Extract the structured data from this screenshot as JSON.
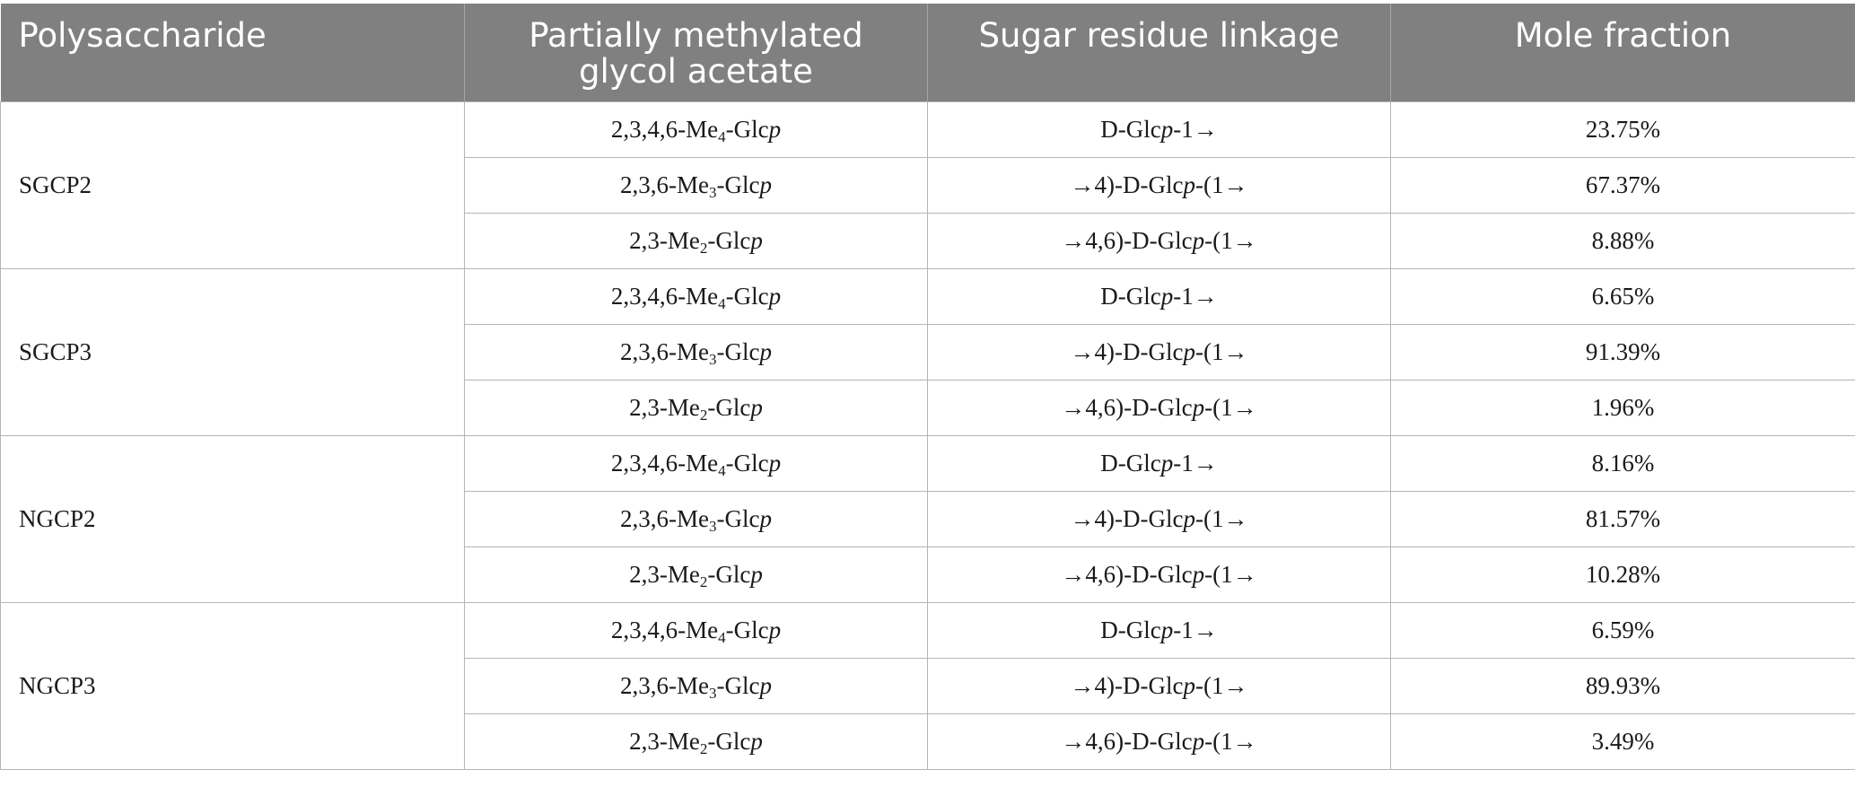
{
  "headers": {
    "polysaccharide": "Polysaccharide",
    "glycol_acetate": "Partially methylated glycol acetate",
    "linkage": "Sugar residue linkage",
    "mole_fraction": "Mole fraction"
  },
  "residue_labels": {
    "r0": {
      "prefix": "2,3,4,6-Me",
      "sub": "4",
      "mid": "-Glc",
      "ital": "p"
    },
    "r1": {
      "prefix": "2,3,6-Me",
      "sub": "3",
      "mid": "-Glc",
      "ital": "p"
    },
    "r2": {
      "prefix": "2,3-Me",
      "sub": "2",
      "mid": "-Glc",
      "ital": "p"
    }
  },
  "linkage_labels": {
    "l0": {
      "pre": "D-Glc",
      "ital": "p",
      "post": "-1→"
    },
    "l1": {
      "pre": "→4)-D-Glc",
      "ital": "p",
      "post": "-(1→"
    },
    "l2": {
      "pre": "→4,6)-D-Glc",
      "ital": "p",
      "post": "-(1→"
    }
  },
  "groups": [
    {
      "name": "SGCP2",
      "fractions": [
        "23.75%",
        "67.37%",
        "8.88%"
      ]
    },
    {
      "name": "SGCP3",
      "fractions": [
        "6.65%",
        "91.39%",
        "1.96%"
      ]
    },
    {
      "name": "NGCP2",
      "fractions": [
        "8.16%",
        "81.57%",
        "10.28%"
      ]
    },
    {
      "name": "NGCP3",
      "fractions": [
        "6.59%",
        "89.93%",
        "3.49%"
      ]
    }
  ]
}
